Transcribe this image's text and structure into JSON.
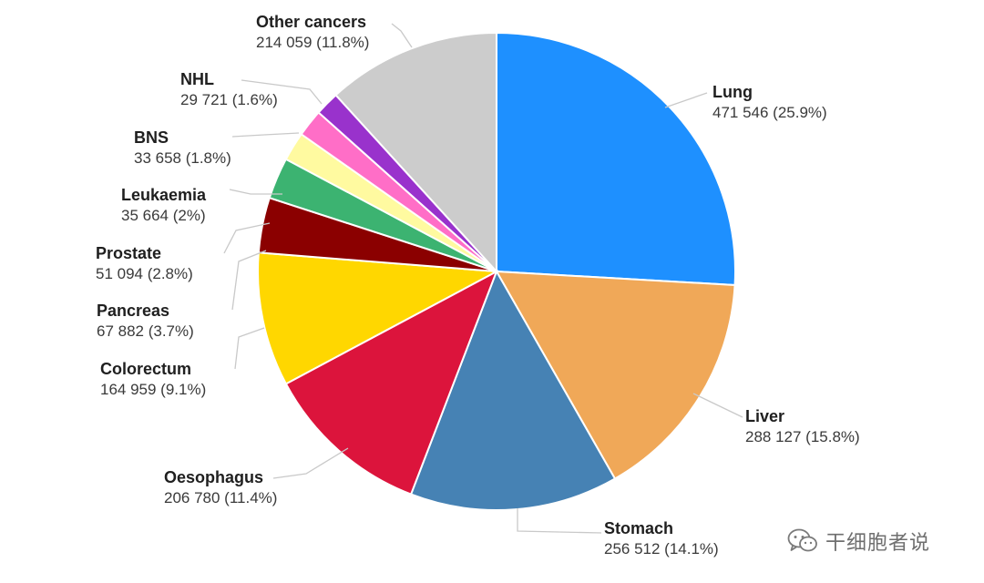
{
  "chart_data": {
    "type": "pie",
    "start_angle_deg": 0,
    "direction": "clockwise",
    "slices": [
      {
        "name": "Lung",
        "value": 471546,
        "value_label": "471 546",
        "percent_label": "25.9%",
        "color": "#1e90ff"
      },
      {
        "name": "Liver",
        "value": 288127,
        "value_label": "288 127",
        "percent_label": "15.8%",
        "color": "#f0a858"
      },
      {
        "name": "Stomach",
        "value": 256512,
        "value_label": "256 512",
        "percent_label": "14.1%",
        "color": "#4682b4"
      },
      {
        "name": "Oesophagus",
        "value": 206780,
        "value_label": "206 780",
        "percent_label": "11.4%",
        "color": "#dc143c"
      },
      {
        "name": "Colorectum",
        "value": 164959,
        "value_label": "164 959",
        "percent_label": "9.1%",
        "color": "#ffd700"
      },
      {
        "name": "Pancreas",
        "value": 67882,
        "value_label": "67 882",
        "percent_label": "3.7%",
        "color": "#8b0000"
      },
      {
        "name": "Prostate",
        "value": 51094,
        "value_label": "51 094",
        "percent_label": "2.8%",
        "color": "#3cb371"
      },
      {
        "name": "Leukaemia",
        "value": 35664,
        "value_label": "35 664",
        "percent_label": "2%",
        "color": "#fffaa0"
      },
      {
        "name": "BNS",
        "value": 33658,
        "value_label": "33 658",
        "percent_label": "1.8%",
        "color": "#ff6ec7"
      },
      {
        "name": "NHL",
        "value": 29721,
        "value_label": "29 721",
        "percent_label": "1.6%",
        "color": "#9932cc"
      },
      {
        "name": "Other cancers",
        "value": 214059,
        "value_label": "214 059",
        "percent_label": "11.8%",
        "color": "#cccccc"
      }
    ]
  },
  "watermark": {
    "text": "干细胞者说",
    "icon": "wechat-icon"
  }
}
